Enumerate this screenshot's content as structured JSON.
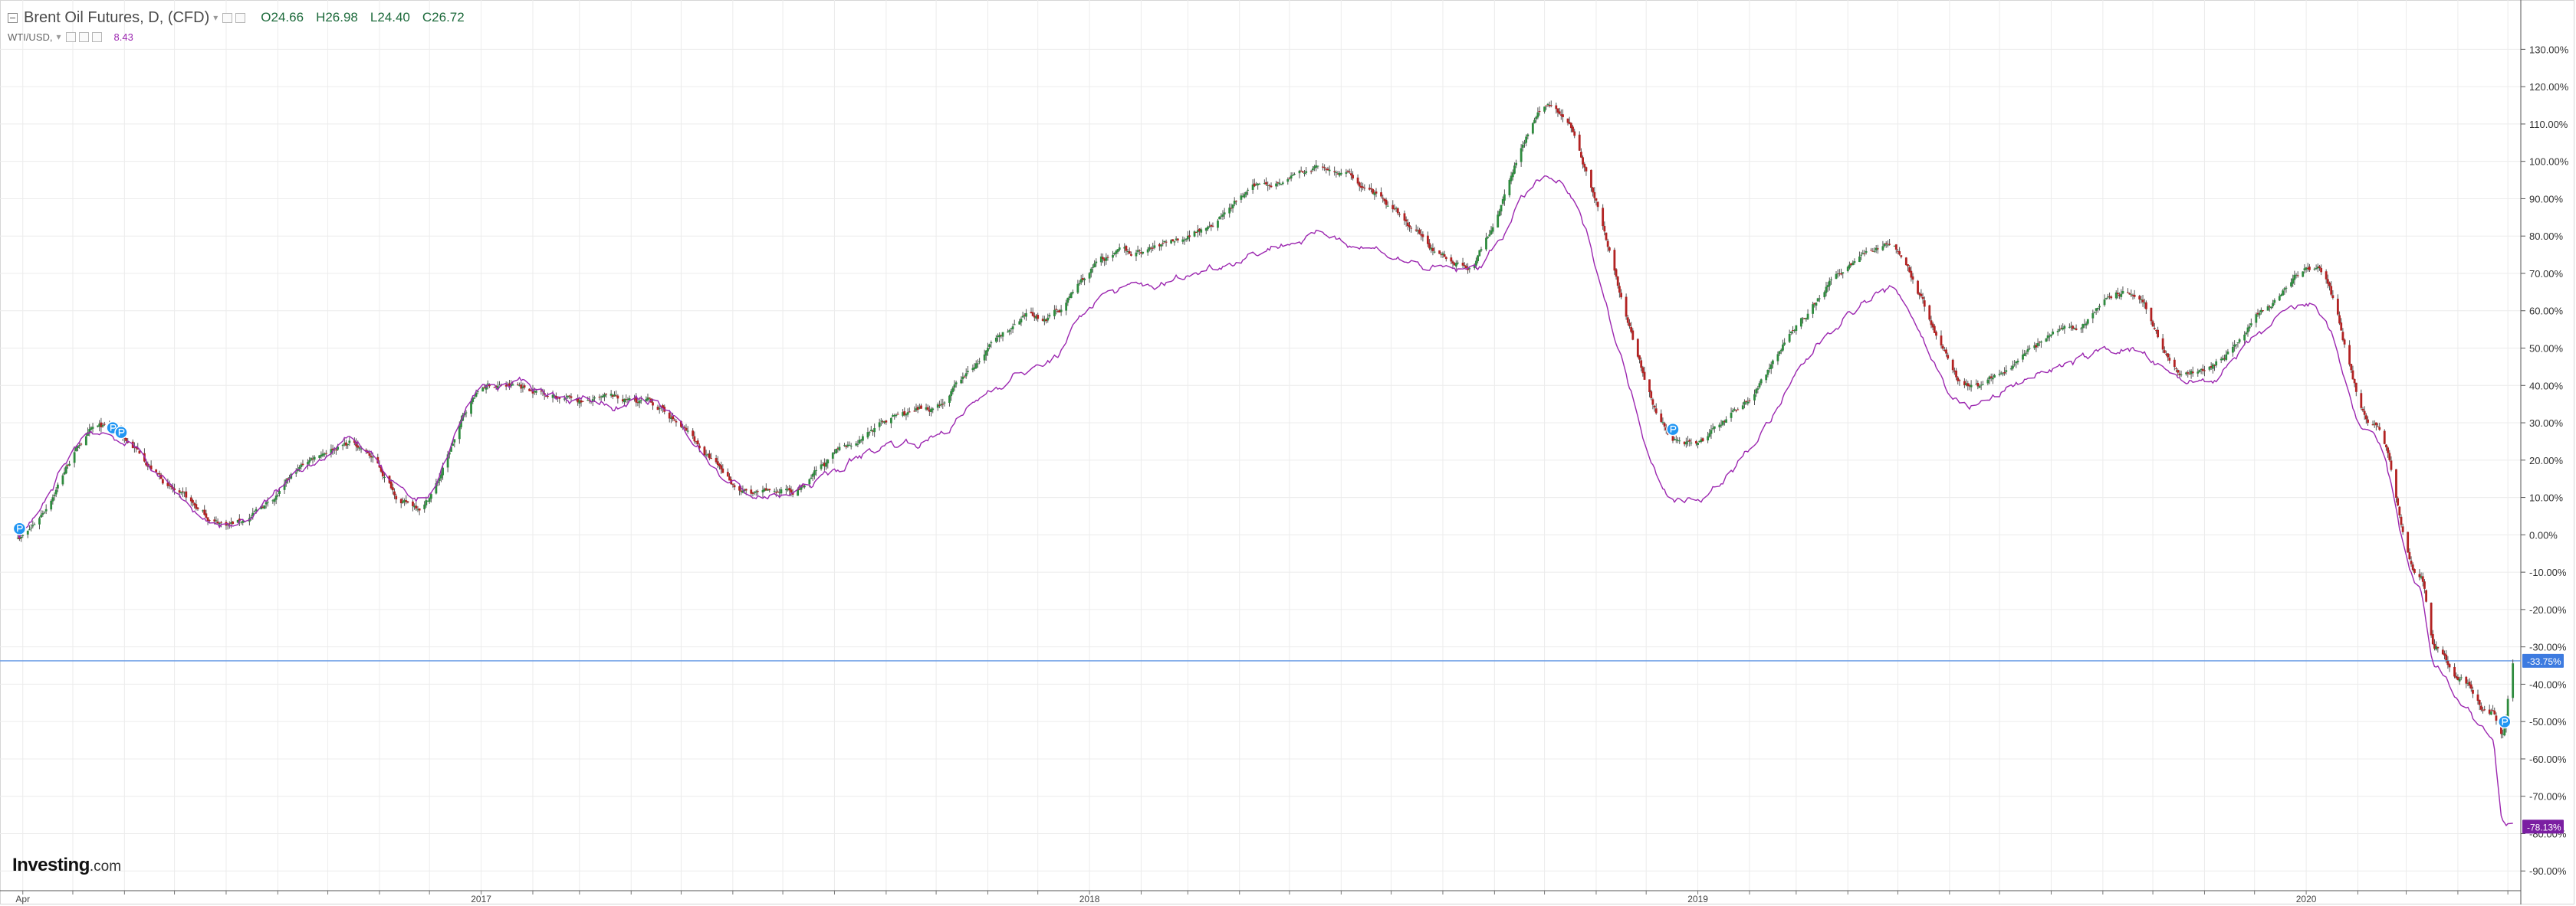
{
  "colors": {
    "up_candle": "#2e8b3e",
    "down_candle": "#b22222",
    "wick": "#555555",
    "compare_line": "#9c27b0",
    "current_price_line": "#6f9fe6",
    "current_label_bg": "#3d7be0",
    "compare_label_bg": "#7b1fa2",
    "grid": "#ececec",
    "marker": "#2196f3"
  },
  "legend": {
    "main_title": "Brent Oil Futures, D, (CFD)",
    "open": "O24.66",
    "high": "H26.98",
    "low": "L24.40",
    "close": "C26.72",
    "compare_title": "WTI/USD,",
    "compare_value": "8.43"
  },
  "logo": {
    "main": "Investing",
    "suffix": ".com"
  },
  "chart_data": {
    "type": "line",
    "x_tick_labels": [
      "Apr",
      "2017",
      "2018",
      "2019",
      "2020"
    ],
    "y_tick_labels": [
      "130.00%",
      "120.00%",
      "110.00%",
      "100.00%",
      "90.00%",
      "80.00%",
      "70.00%",
      "60.00%",
      "50.00%",
      "40.00%",
      "30.00%",
      "20.00%",
      "10.00%",
      "0.00%",
      "-10.00%",
      "-20.00%",
      "-30.00%",
      "-40.00%",
      "-50.00%",
      "-60.00%",
      "-70.00%",
      "-80.00%",
      "-90.00%"
    ],
    "ylim": [
      -92,
      135
    ],
    "y_unit": "%",
    "grid": true,
    "x": [
      "2016-03-29",
      "2016-05-15",
      "2016-08-01",
      "2016-10-15",
      "2016-11-22",
      "2017-01-06",
      "2017-04-05",
      "2017-06-21",
      "2017-09-15",
      "2017-12-01",
      "2018-01-15",
      "2018-05-21",
      "2018-08-15",
      "2018-10-03",
      "2018-12-24",
      "2019-04-25",
      "2019-06-12",
      "2019-08-07",
      "2019-09-16",
      "2019-10-20",
      "2020-01-06",
      "2020-02-10",
      "2020-03-09",
      "2020-03-18",
      "2020-04-02",
      "2020-04-21",
      "2020-04-28",
      "2020-05-04"
    ],
    "series": [
      {
        "name": "Brent Oil Futures",
        "values": [
          0,
          28,
          3,
          25,
          8,
          40,
          35,
          10,
          32,
          57,
          74,
          98,
          73,
          115,
          25,
          78,
          40,
          53,
          65,
          43,
          70,
          30,
          -10,
          -30,
          -40,
          -48,
          -53,
          -33.75
        ]
      },
      {
        "name": "WTI/USD",
        "values": [
          0,
          28,
          3,
          25,
          8,
          40,
          35,
          10,
          25,
          45,
          65,
          80,
          70,
          95,
          10,
          65,
          35,
          45,
          50,
          40,
          60,
          25,
          -15,
          -35,
          -45,
          -55,
          -78,
          -78.13
        ]
      }
    ],
    "current_value_labels": [
      "-33.75%",
      "-78.13%"
    ]
  }
}
